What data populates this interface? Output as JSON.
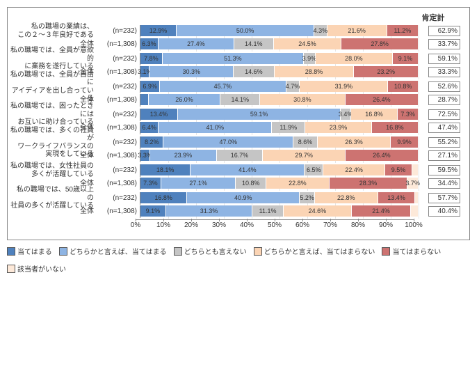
{
  "chart": {
    "type": "stacked-bar-horizontal",
    "affirmative_header": "肯定計",
    "x_axis": {
      "min": 0,
      "max": 100,
      "tick_step": 10,
      "suffix": "%"
    },
    "colors": {
      "c1": "#4f81bd",
      "c2": "#8eb4e3",
      "c3": "#c5c5c5",
      "c4": "#fbd4b4",
      "c5": "#cd7371",
      "c6": "#fde9d9",
      "border": "#888888",
      "text": "#333333",
      "bg": "#ffffff"
    },
    "legend": [
      {
        "key": "c1",
        "label": "当てはまる"
      },
      {
        "key": "c2",
        "label": "どちらかと言えば、当てはまる"
      },
      {
        "key": "c3",
        "label": "どちらとも言えない"
      },
      {
        "key": "c4",
        "label": "どちらかと言えば、当てはまらない"
      },
      {
        "key": "c5",
        "label": "当てはまらない"
      },
      {
        "key": "c6",
        "label": "該当者がいない"
      }
    ],
    "fontsize": {
      "label": 10,
      "segment": 9,
      "axis": 10,
      "header": 11
    },
    "questions": [
      {
        "label": "私の職場の業績は、\nこの２～３年良好である",
        "rows": [
          {
            "n": "(n=232)",
            "seg": [
              12.9,
              50.0,
              4.3,
              21.6,
              11.2,
              0
            ],
            "aff": "62.9%"
          },
          {
            "sub": "全体",
            "n": "(n=1,308)",
            "seg": [
              6.3,
              27.4,
              14.1,
              24.5,
              27.8,
              0
            ],
            "aff": "33.7%"
          }
        ]
      },
      {
        "label": "私の職場では、全員が意欲的\nに業務を遂行している",
        "rows": [
          {
            "n": "(n=232)",
            "seg": [
              7.8,
              51.3,
              3.9,
              28.0,
              9.1,
              0
            ],
            "aff": "59.1%"
          },
          {
            "sub": "全体",
            "n": "(n=1,308)",
            "seg": [
              3.1,
              30.3,
              14.6,
              28.8,
              23.2,
              0
            ],
            "aff": "33.3%"
          }
        ]
      },
      {
        "label": "私の職場では、全員が自由に\nアイディアを出し合っている",
        "rows": [
          {
            "n": "(n=232)",
            "seg": [
              6.9,
              45.7,
              4.7,
              31.9,
              10.8,
              0
            ],
            "aff": "52.6%"
          },
          {
            "sub": "全体",
            "n": "(n=1,308)",
            "seg": [
              2.7,
              26.0,
              14.1,
              30.8,
              26.4,
              0
            ],
            "aff": "28.7%"
          }
        ]
      },
      {
        "label": "私の職場では、困ったときには\nお互いに助け合っている",
        "rows": [
          {
            "n": "(n=232)",
            "seg": [
              13.4,
              59.1,
              3.4,
              16.8,
              7.3,
              0
            ],
            "aff": "72.5%"
          },
          {
            "sub": "全体",
            "n": "(n=1,308)",
            "seg": [
              6.4,
              41.0,
              11.9,
              23.9,
              16.8,
              0
            ],
            "aff": "47.4%"
          }
        ]
      },
      {
        "label": "私の職場では、多くの社員が\nワークライフバランスの\n実現をしている",
        "rows": [
          {
            "n": "(n=232)",
            "seg": [
              8.2,
              47.0,
              8.6,
              26.3,
              9.9,
              0
            ],
            "aff": "55.2%"
          },
          {
            "sub": "全体",
            "n": "(n=1,308)",
            "seg": [
              3.3,
              23.9,
              16.7,
              29.7,
              26.4,
              0
            ],
            "aff": "27.1%"
          }
        ]
      },
      {
        "label": "私の職場では、女性社員の\n多くが活躍している",
        "rows": [
          {
            "n": "(n=232)",
            "seg": [
              18.1,
              41.4,
              6.5,
              22.4,
              9.5,
              2.1
            ],
            "aff": "59.5%"
          },
          {
            "sub": "全体",
            "n": "(n=1,308)",
            "seg": [
              7.3,
              27.1,
              10.8,
              22.8,
              28.3,
              3.7
            ],
            "aff": "34.4%"
          }
        ]
      },
      {
        "label": "私の職場では、50歳以上の\n社員の多くが活躍している",
        "rows": [
          {
            "n": "(n=232)",
            "seg": [
              16.8,
              40.9,
              5.2,
              22.8,
              13.4,
              0.9
            ],
            "aff": "57.7%"
          },
          {
            "sub": "全体",
            "n": "(n=1,308)",
            "seg": [
              9.1,
              31.3,
              11.1,
              24.6,
              21.4,
              2.5
            ],
            "aff": "40.4%"
          }
        ]
      }
    ]
  }
}
